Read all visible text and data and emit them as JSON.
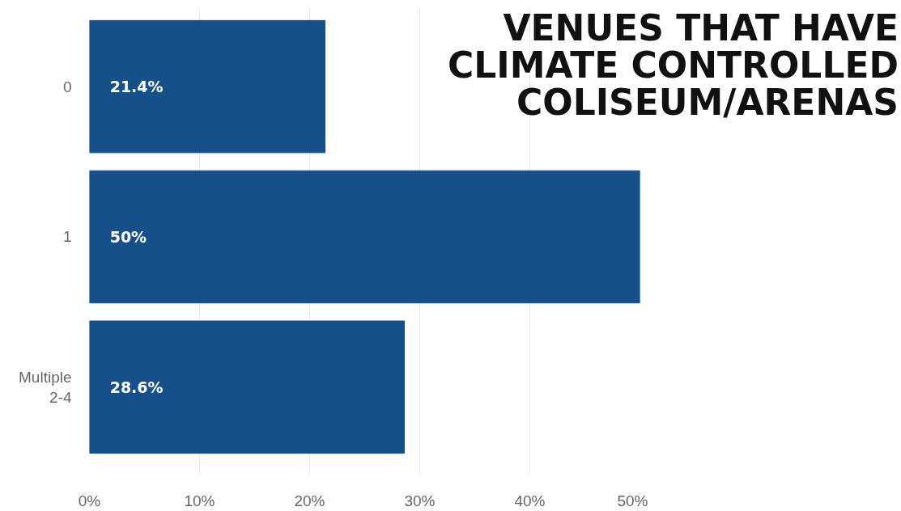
{
  "chart_data": {
    "type": "bar",
    "orientation": "horizontal",
    "title": "VENUES THAT HAVE CLIMATE CONTROLLED COLISEUM/ARENAS",
    "categories": [
      "0",
      "1",
      "Multiple 2-4"
    ],
    "values": [
      21.4,
      50,
      28.6
    ],
    "value_labels": [
      "21.4%",
      "50%",
      "28.6%"
    ],
    "color": "#15508a",
    "xlim": [
      0,
      50
    ],
    "xticks": [
      {
        "value": 0,
        "label": "0%"
      },
      {
        "value": 10,
        "label": "10%"
      },
      {
        "value": 20,
        "label": "20%"
      },
      {
        "value": 30,
        "label": "30%"
      },
      {
        "value": 40,
        "label": "40%"
      },
      {
        "value": 50,
        "label": "50%"
      }
    ],
    "grid": "x"
  }
}
